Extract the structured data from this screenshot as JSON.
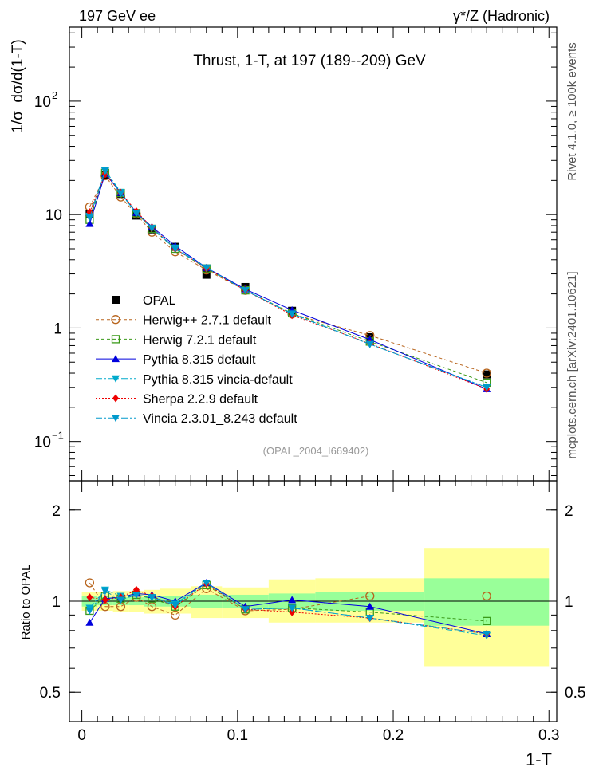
{
  "header": {
    "left": "197 GeV ee",
    "right": "γ*/Z (Hadronic)",
    "side_rivet": "Rivet 4.1.0, ≥ 100k events",
    "side_mcplots": "mcplots.cern.ch [arXiv:2401.10621]"
  },
  "colors": {
    "opal": "#000000",
    "herwigpp": "#b8651e",
    "herwig7": "#3b9a1a",
    "pythia": "#0000dd",
    "vincia_default": "#00aacc",
    "sherpa": "#ee0000",
    "vincia": "#0099cc",
    "band_inner": "#99ff99",
    "band_outer": "#ffff99"
  },
  "chart_data": [
    {
      "type": "line",
      "panel": "main",
      "title": "Thrust, 1-T, at 197 (189--209) GeV",
      "watermark": "(OPAL_2004_I669402)",
      "ylabel": "1/σ  dσ/d(1-T)",
      "xlabel": "",
      "xlim": [
        -0.008,
        0.305
      ],
      "ylim": [
        0.045,
        450
      ],
      "yscale": "log",
      "yticks": [
        {
          "v": 0.1,
          "label": "10",
          "exp": "−1"
        },
        {
          "v": 1,
          "label": "1"
        },
        {
          "v": 10,
          "label": "10"
        },
        {
          "v": 100,
          "label": "10",
          "exp": "2"
        }
      ],
      "x": [
        0.005,
        0.015,
        0.025,
        0.035,
        0.045,
        0.06,
        0.08,
        0.105,
        0.135,
        0.185,
        0.26
      ],
      "series": [
        {
          "name": "OPAL",
          "style": "data",
          "marker": "square-filled",
          "color_key": "opal",
          "values": [
            10.2,
            22.5,
            15.2,
            9.8,
            7.4,
            5.2,
            2.95,
            2.3,
            1.42,
            0.83,
            0.39
          ]
        },
        {
          "name": "Herwig++ 2.7.1 default",
          "marker": "circle-open",
          "dash": "4,3",
          "color_key": "herwigpp",
          "values": [
            11.7,
            22.0,
            14.3,
            10.1,
            7.0,
            4.7,
            3.25,
            2.15,
            1.33,
            0.86,
            0.4
          ]
        },
        {
          "name": "Herwig 7.2.1 default",
          "marker": "square-open",
          "dash": "4,3",
          "color_key": "herwig7",
          "values": [
            9.0,
            23.3,
            15.5,
            10.3,
            7.5,
            5.0,
            3.35,
            2.15,
            1.35,
            0.76,
            0.33
          ]
        },
        {
          "name": "Pythia 8.315 default",
          "marker": "triangle-up",
          "dash": "",
          "color_key": "pythia",
          "values": [
            8.3,
            23.0,
            15.6,
            10.4,
            7.8,
            5.3,
            3.4,
            2.2,
            1.44,
            0.79,
            0.29
          ]
        },
        {
          "name": "Pythia 8.315 vincia-default",
          "marker": "triangle-down",
          "dash": "8,3,2,3",
          "color_key": "vincia_default",
          "values": [
            9.7,
            24.5,
            15.8,
            10.3,
            7.6,
            5.1,
            3.4,
            2.15,
            1.34,
            0.72,
            0.3
          ]
        },
        {
          "name": "Sherpa 2.2.9 default",
          "marker": "diamond",
          "dash": "2,2",
          "color_key": "sherpa",
          "values": [
            10.5,
            22.7,
            15.6,
            10.7,
            7.7,
            5.0,
            3.35,
            2.15,
            1.3,
            0.73,
            0.29
          ]
        },
        {
          "name": "Vincia 2.3.01_8.243 default",
          "marker": "triangle-down",
          "dash": "8,3,2,3",
          "color_key": "vincia",
          "values": [
            9.4,
            24.3,
            15.4,
            10.3,
            7.6,
            5.0,
            3.4,
            2.15,
            1.33,
            0.72,
            0.3
          ]
        }
      ]
    },
    {
      "type": "line",
      "panel": "ratio",
      "ylabel": "Ratio to OPAL",
      "xlabel": "1-T",
      "xlim": [
        -0.008,
        0.305
      ],
      "ylim": [
        0.4,
        2.5
      ],
      "yscale": "log",
      "yticks": [
        {
          "v": 0.5,
          "label": "0.5"
        },
        {
          "v": 1,
          "label": "1"
        },
        {
          "v": 2,
          "label": "2"
        }
      ],
      "xticks": [
        {
          "v": 0,
          "label": "0"
        },
        {
          "v": 0.1,
          "label": "0.1"
        },
        {
          "v": 0.2,
          "label": "0.2"
        },
        {
          "v": 0.3,
          "label": "0.3"
        }
      ],
      "bin_edges": [
        0.0,
        0.01,
        0.02,
        0.03,
        0.04,
        0.05,
        0.07,
        0.09,
        0.12,
        0.15,
        0.22,
        0.3
      ],
      "band_inner": [
        [
          0.96,
          1.04
        ],
        [
          0.97,
          1.03
        ],
        [
          0.97,
          1.03
        ],
        [
          0.97,
          1.03
        ],
        [
          0.96,
          1.04
        ],
        [
          0.96,
          1.04
        ],
        [
          0.95,
          1.05
        ],
        [
          0.95,
          1.05
        ],
        [
          0.94,
          1.06
        ],
        [
          0.93,
          1.07
        ],
        [
          0.83,
          1.19
        ]
      ],
      "band_outer": [
        [
          0.93,
          1.07
        ],
        [
          0.93,
          1.07
        ],
        [
          0.92,
          1.08
        ],
        [
          0.92,
          1.08
        ],
        [
          0.91,
          1.09
        ],
        [
          0.91,
          1.1
        ],
        [
          0.88,
          1.12
        ],
        [
          0.88,
          1.11
        ],
        [
          0.85,
          1.18
        ],
        [
          0.85,
          1.19
        ],
        [
          0.61,
          1.5
        ]
      ],
      "x": [
        0.005,
        0.015,
        0.025,
        0.035,
        0.045,
        0.06,
        0.08,
        0.105,
        0.135,
        0.185,
        0.26
      ],
      "series": [
        {
          "name": "Herwig++ 2.7.1 default",
          "marker": "circle-open",
          "dash": "4,3",
          "color_key": "herwigpp",
          "values": [
            1.15,
            0.96,
            0.96,
            1.03,
            0.96,
            0.9,
            1.1,
            0.93,
            0.94,
            1.04,
            1.04
          ]
        },
        {
          "name": "Herwig 7.2.1 default",
          "marker": "square-open",
          "dash": "4,3",
          "color_key": "herwig7",
          "values": [
            0.93,
            1.04,
            1.02,
            1.05,
            1.02,
            0.96,
            1.13,
            0.94,
            0.95,
            0.92,
            0.86
          ]
        },
        {
          "name": "Pythia 8.315 default",
          "marker": "triangle-up",
          "dash": "",
          "color_key": "pythia",
          "values": [
            0.85,
            1.02,
            1.03,
            1.06,
            1.05,
            1.0,
            1.15,
            0.96,
            1.01,
            0.96,
            0.78
          ]
        },
        {
          "name": "Pythia 8.315 vincia-default",
          "marker": "triangle-down",
          "dash": "8,3,2,3",
          "color_key": "vincia_default",
          "values": [
            0.95,
            1.09,
            1.04,
            1.05,
            1.03,
            0.98,
            1.15,
            0.94,
            0.95,
            0.88,
            0.77
          ]
        },
        {
          "name": "Sherpa 2.2.9 default",
          "marker": "diamond",
          "dash": "2,2",
          "color_key": "sherpa",
          "values": [
            1.03,
            1.01,
            1.03,
            1.09,
            1.04,
            0.96,
            1.14,
            0.94,
            0.92,
            0.88,
            0.78
          ]
        },
        {
          "name": "Vincia 2.3.01_8.243 default",
          "marker": "triangle-down",
          "dash": "8,3,2,3",
          "color_key": "vincia",
          "values": [
            0.93,
            1.08,
            1.01,
            1.05,
            1.03,
            0.97,
            1.15,
            0.94,
            0.95,
            0.88,
            0.78
          ]
        }
      ]
    }
  ]
}
